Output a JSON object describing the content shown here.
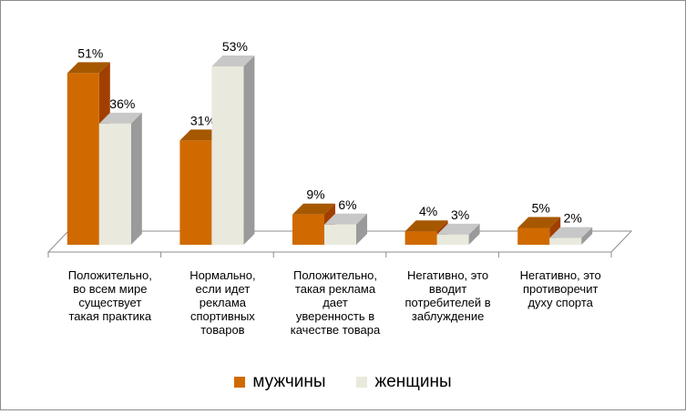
{
  "chart_data": {
    "type": "bar",
    "categories": [
      "Положительно, во всем мире существует такая практика",
      "Нормально, если идет реклама спортивных товаров",
      "Положительно, такая реклама дает уверенность в качестве товара",
      "Негативно, это вводит потребителей в заблуждение",
      "Негативно, это противоречит духу спорта"
    ],
    "category_lines": [
      [
        "Положительно,",
        "во всем мире",
        "существует",
        "такая практика"
      ],
      [
        "Нормально,",
        "если идет",
        "реклама",
        "спортивных",
        "товаров"
      ],
      [
        "Положительно,",
        "такая реклама",
        "дает",
        "уверенность в",
        "качестве товара"
      ],
      [
        "Негативно, это",
        "вводит",
        "потребителей в",
        "заблуждение"
      ],
      [
        "Негативно, это",
        "противоречит",
        "духу спорта"
      ]
    ],
    "series": [
      {
        "name": "мужчины",
        "values": [
          51,
          31,
          9,
          4,
          5
        ],
        "labels": [
          "51%",
          "31%",
          "9%",
          "4%",
          "5%"
        ],
        "color": "#d06a00"
      },
      {
        "name": "женщины",
        "values": [
          36,
          53,
          6,
          3,
          2
        ],
        "labels": [
          "36%",
          "53%",
          "6%",
          "3%",
          "2%"
        ],
        "color": "#e9e9dd"
      }
    ],
    "unit": "%",
    "ylim": [
      0,
      53
    ],
    "grid": false,
    "legend_position": "bottom",
    "three_d": true
  }
}
